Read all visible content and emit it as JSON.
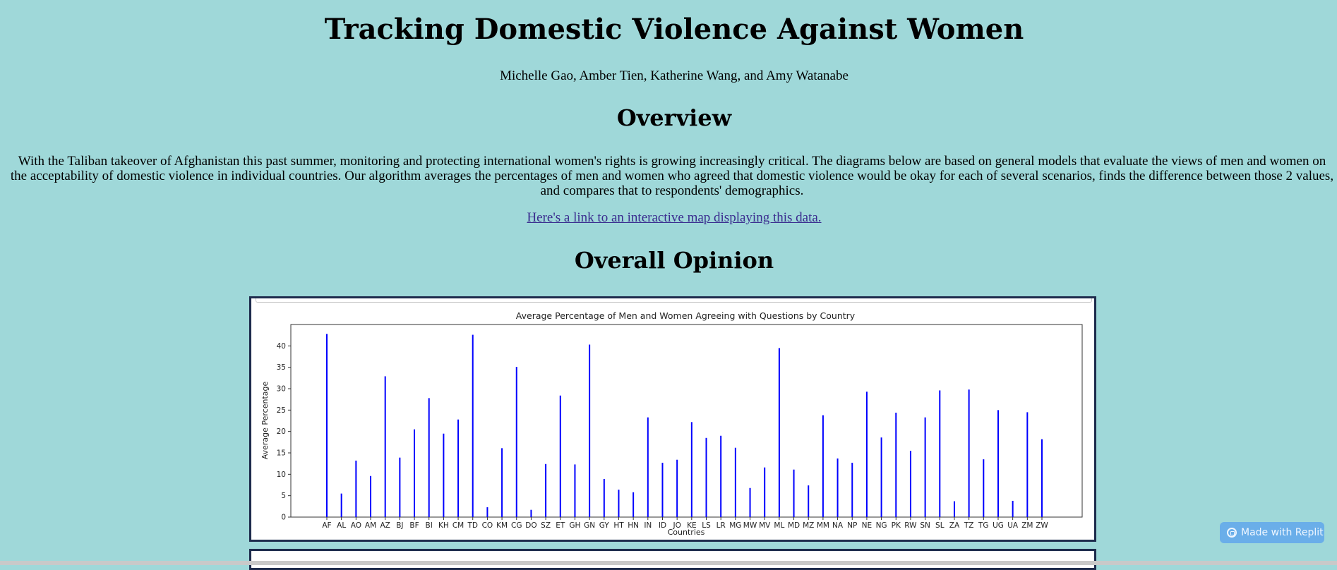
{
  "page": {
    "title": "Tracking Domestic Violence Against Women",
    "authors": "Michelle Gao, Amber Tien, Katherine Wang, and Amy Watanabe",
    "overview_heading": "Overview",
    "overview_text": "With the Taliban takeover of Afghanistan this past summer, monitoring and protecting international women's rights is growing increasingly critical. The diagrams below are based on general models that evaluate the views of men and women on the acceptability of domestic violence in individual countries. Our algorithm averages the percentages of men and women who agreed that domestic violence would be okay for each of several scenarios, finds the difference between those 2 values, and compares that to respondents' demographics.",
    "map_link_text": "Here's a link to an interactive map displaying this data.",
    "overall_heading": "Overall Opinion"
  },
  "badge": {
    "label": "Made with Replit",
    "icon": "replit-icon"
  },
  "colors": {
    "background": "#9fd8d9",
    "bar": "#0000ff",
    "frame_border": "#1d2b4c",
    "link": "#3a2c8f",
    "badge": "#6aaee9"
  },
  "chart_data": {
    "type": "bar",
    "title": "Average Percentage of Men and Women Agreeing with Questions by Country",
    "xlabel": "Countries",
    "ylabel": "Average Percentage",
    "ylim": [
      0,
      45
    ],
    "yticks": [
      0,
      5,
      10,
      15,
      20,
      25,
      30,
      35,
      40
    ],
    "grid": false,
    "categories": [
      "AF",
      "AL",
      "AO",
      "AM",
      "AZ",
      "BJ",
      "BF",
      "BI",
      "KH",
      "CM",
      "TD",
      "CO",
      "KM",
      "CG",
      "DO",
      "SZ",
      "ET",
      "GH",
      "GN",
      "GY",
      "HT",
      "HN",
      "IN",
      "ID",
      "JO",
      "KE",
      "LS",
      "LR",
      "MG",
      "MW",
      "MV",
      "ML",
      "MD",
      "MZ",
      "MM",
      "NA",
      "NP",
      "NE",
      "NG",
      "PK",
      "RW",
      "SN",
      "SL",
      "ZA",
      "TZ",
      "TG",
      "UG",
      "UA",
      "ZM",
      "ZW"
    ],
    "values": [
      42.8,
      5.5,
      13.2,
      9.6,
      32.9,
      13.9,
      20.5,
      27.8,
      19.5,
      22.8,
      42.6,
      2.3,
      16.1,
      35.1,
      1.7,
      12.4,
      28.4,
      12.3,
      40.3,
      8.9,
      6.4,
      5.8,
      23.3,
      12.7,
      13.4,
      22.2,
      18.5,
      19.0,
      16.2,
      6.8,
      11.6,
      39.5,
      11.1,
      7.4,
      23.8,
      13.7,
      12.7,
      29.3,
      18.6,
      24.4,
      15.5,
      23.3,
      29.6,
      3.7,
      29.8,
      13.5,
      25.0,
      3.8,
      24.5,
      18.2
    ]
  }
}
